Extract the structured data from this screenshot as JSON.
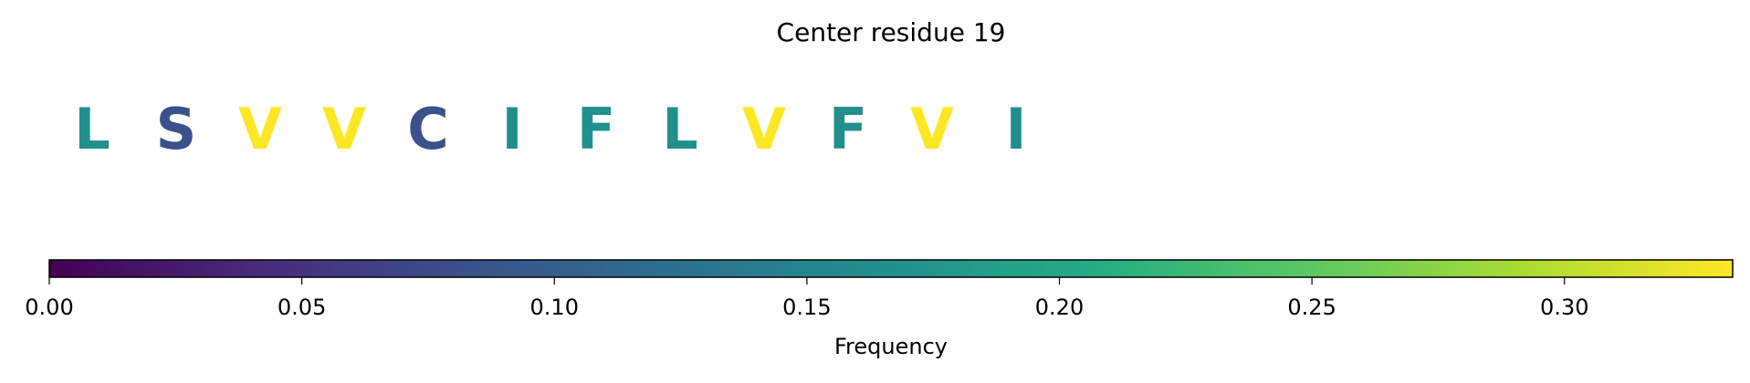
{
  "chart_data": {
    "type": "residue-letters",
    "title": "Center residue 19",
    "categories": [
      "L",
      "S",
      "V",
      "V",
      "C",
      "I",
      "F",
      "L",
      "V",
      "F",
      "V",
      "I"
    ],
    "values": [
      0.167,
      0.083,
      0.333,
      0.333,
      0.083,
      0.167,
      0.167,
      0.167,
      0.333,
      0.167,
      0.333,
      0.167
    ],
    "colormap": "viridis",
    "colorbar_label": "Frequency",
    "clim": [
      0,
      0.3333
    ],
    "cticks": [
      {
        "value": 0,
        "label": "0.00"
      },
      {
        "value": 0.05,
        "label": "0.05"
      },
      {
        "value": 0.1,
        "label": "0.10"
      },
      {
        "value": 0.15,
        "label": "0.15"
      },
      {
        "value": 0.2,
        "label": "0.20"
      },
      {
        "value": 0.25,
        "label": "0.25"
      },
      {
        "value": 0.3,
        "label": "0.30"
      }
    ]
  }
}
